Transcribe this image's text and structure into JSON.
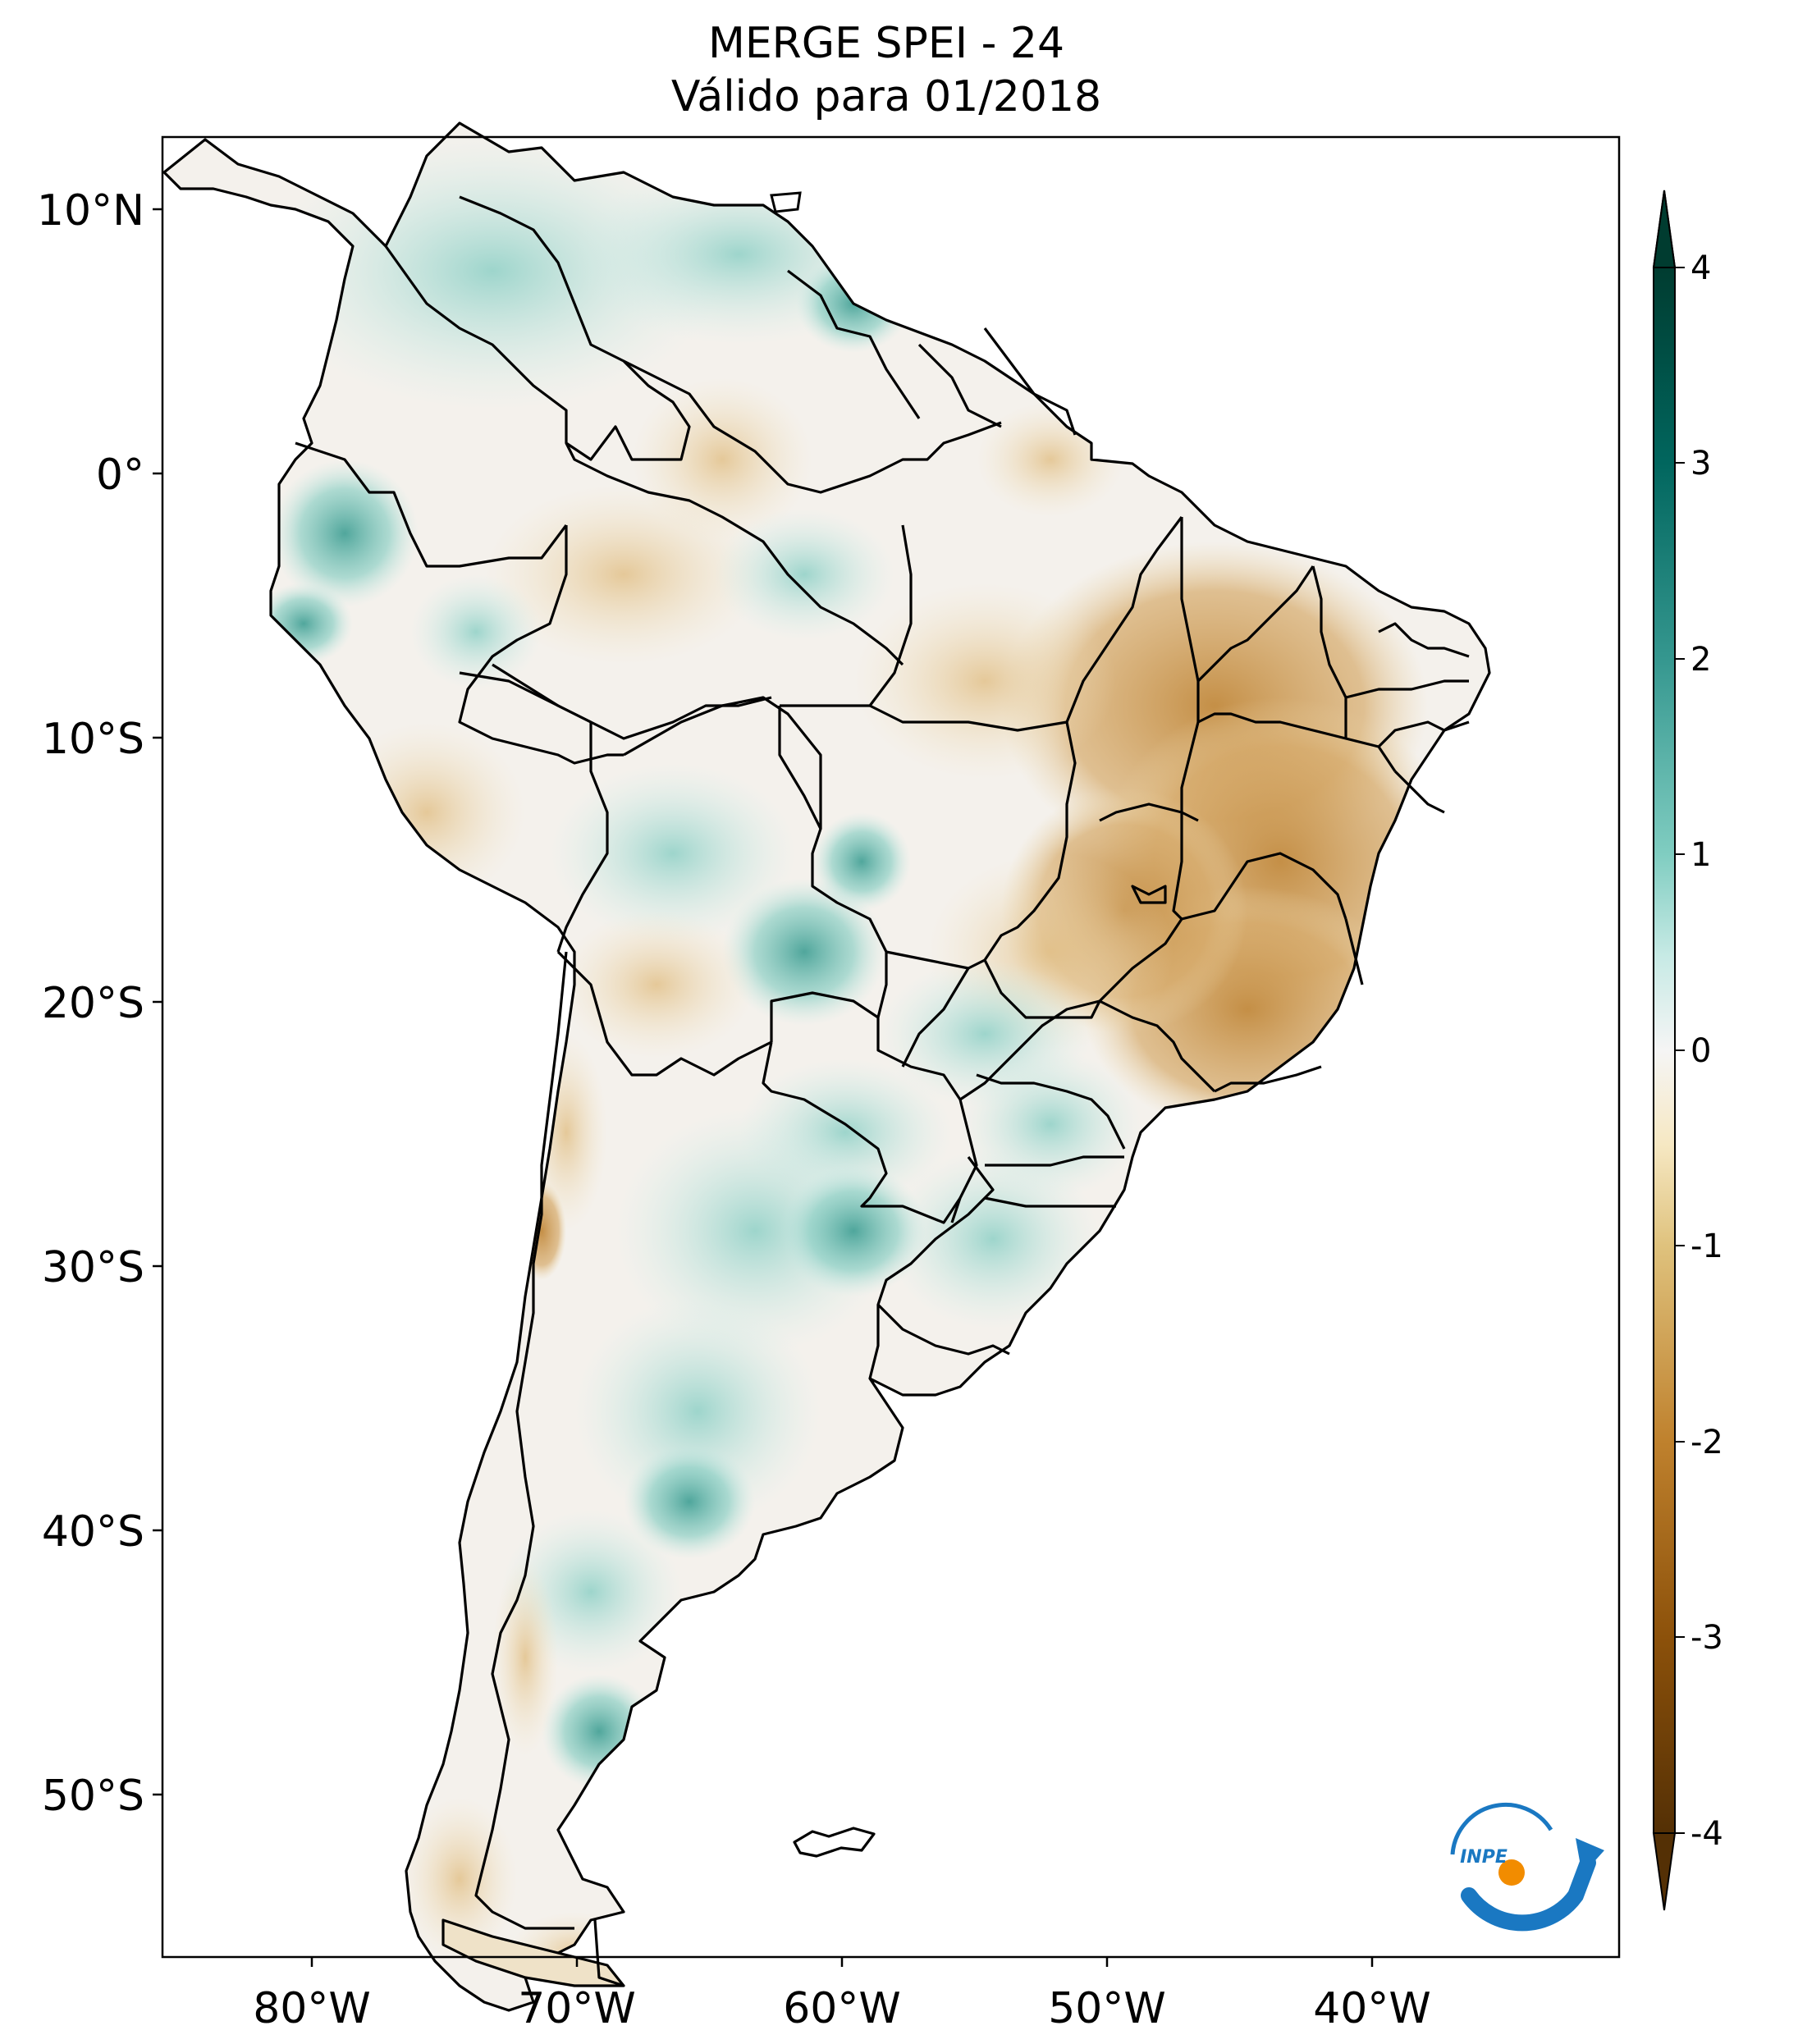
{
  "title": {
    "line1": "MERGE   SPEI - 24",
    "line2": "Válido para 01/2018"
  },
  "map": {
    "longitude_ticks": [
      "80°W",
      "70°W",
      "60°W",
      "50°W",
      "40°W"
    ],
    "latitude_ticks": [
      "10°N",
      "0°",
      "10°S",
      "20°S",
      "30°S",
      "40°S",
      "50°S"
    ],
    "lon_range": [
      -85,
      -30
    ],
    "lat_range": [
      -56,
      13
    ],
    "colors": {
      "wet": "#6fc2b4",
      "dry": "#c8924a",
      "neutral": "#f5f5f5",
      "border": "#000000"
    }
  },
  "colorbar": {
    "ticks": [
      "4",
      "3",
      "2",
      "1",
      "0",
      "-1",
      "-2",
      "-3",
      "-4"
    ],
    "range": [
      -4,
      4
    ],
    "extend": "both",
    "colormap": "BrBG",
    "stops": [
      {
        "value": -4,
        "color": "#543005"
      },
      {
        "value": -3,
        "color": "#8c510a"
      },
      {
        "value": -2,
        "color": "#bf812d"
      },
      {
        "value": -1,
        "color": "#dfc27d"
      },
      {
        "value": -0.5,
        "color": "#f6e8c3"
      },
      {
        "value": 0,
        "color": "#f5f5f5"
      },
      {
        "value": 0.5,
        "color": "#c7eae5"
      },
      {
        "value": 1,
        "color": "#80cdc1"
      },
      {
        "value": 2,
        "color": "#35978f"
      },
      {
        "value": 3,
        "color": "#01665e"
      },
      {
        "value": 4,
        "color": "#003c30"
      }
    ]
  },
  "logo": {
    "text": "INPE",
    "blue": "#1a78c2",
    "orange": "#f28c00"
  }
}
